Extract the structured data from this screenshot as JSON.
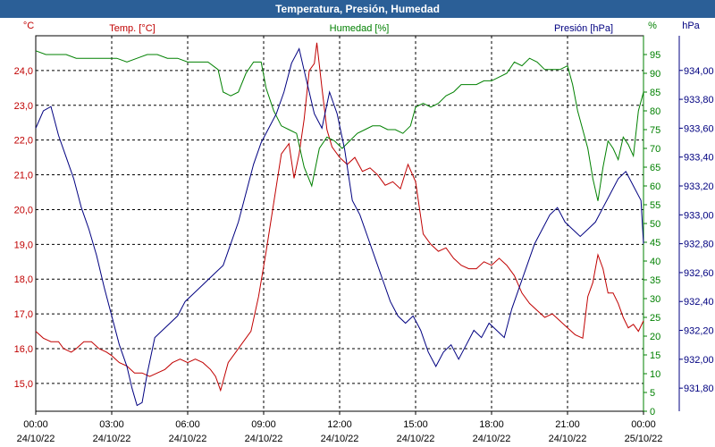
{
  "title": "Temperatura, Presión, Humedad",
  "chart_data": {
    "type": "line",
    "title": "Temperatura, Presión, Humedad",
    "grid": true,
    "x_ticks": [
      {
        "time": "00:00",
        "date": "24/10/22"
      },
      {
        "time": "03:00",
        "date": "24/10/22"
      },
      {
        "time": "06:00",
        "date": "24/10/22"
      },
      {
        "time": "09:00",
        "date": "24/10/22"
      },
      {
        "time": "12:00",
        "date": "24/10/22"
      },
      {
        "time": "15:00",
        "date": "24/10/22"
      },
      {
        "time": "18:00",
        "date": "24/10/22"
      },
      {
        "time": "21:00",
        "date": "24/10/22"
      },
      {
        "time": "00:00",
        "date": "25/10/22"
      }
    ],
    "xlim_hours": [
      0,
      24
    ],
    "axes": {
      "temp": {
        "unit": "°C",
        "color": "#c00000",
        "ylim": [
          14.2,
          25.0
        ],
        "ticks": [
          "15,0",
          "16,0",
          "17,0",
          "18,0",
          "19,0",
          "20,0",
          "21,0",
          "22,0",
          "23,0",
          "24,0"
        ]
      },
      "hum": {
        "unit": "%",
        "color": "#008000",
        "ylim": [
          0,
          100
        ],
        "ticks": [
          "0",
          "5",
          "10",
          "15",
          "20",
          "25",
          "30",
          "35",
          "40",
          "45",
          "50",
          "55",
          "60",
          "65",
          "70",
          "75",
          "80",
          "85",
          "90",
          "95"
        ]
      },
      "pres": {
        "unit": "hPa",
        "color": "#000080",
        "ylim": [
          931.64,
          934.24
        ],
        "ticks": [
          "931,80",
          "932,00",
          "932,20",
          "932,40",
          "932,60",
          "932,80",
          "933,00",
          "933,20",
          "933,40",
          "933,60",
          "933,80",
          "934,00"
        ]
      }
    },
    "series": [
      {
        "name": "Temp. [°C]",
        "axis": "temp",
        "color": "#c00000",
        "points": [
          [
            0,
            16.5
          ],
          [
            0.3,
            16.3
          ],
          [
            0.6,
            16.2
          ],
          [
            0.9,
            16.2
          ],
          [
            1.1,
            16.0
          ],
          [
            1.4,
            15.9
          ],
          [
            1.6,
            16.0
          ],
          [
            1.9,
            16.2
          ],
          [
            2.2,
            16.2
          ],
          [
            2.5,
            16.0
          ],
          [
            2.8,
            15.9
          ],
          [
            3.0,
            15.8
          ],
          [
            3.3,
            15.6
          ],
          [
            3.6,
            15.5
          ],
          [
            3.9,
            15.3
          ],
          [
            4.2,
            15.3
          ],
          [
            4.5,
            15.2
          ],
          [
            4.8,
            15.3
          ],
          [
            5.1,
            15.4
          ],
          [
            5.4,
            15.6
          ],
          [
            5.7,
            15.7
          ],
          [
            6.0,
            15.6
          ],
          [
            6.3,
            15.7
          ],
          [
            6.6,
            15.6
          ],
          [
            6.9,
            15.4
          ],
          [
            7.1,
            15.2
          ],
          [
            7.3,
            14.8
          ],
          [
            7.6,
            15.6
          ],
          [
            7.9,
            15.9
          ],
          [
            8.2,
            16.2
          ],
          [
            8.5,
            16.5
          ],
          [
            8.8,
            17.5
          ],
          [
            9.1,
            18.8
          ],
          [
            9.4,
            20.2
          ],
          [
            9.7,
            21.6
          ],
          [
            10.0,
            21.9
          ],
          [
            10.2,
            20.9
          ],
          [
            10.4,
            21.6
          ],
          [
            10.6,
            22.6
          ],
          [
            10.8,
            24.0
          ],
          [
            11.0,
            24.2
          ],
          [
            11.1,
            24.8
          ],
          [
            11.3,
            23.5
          ],
          [
            11.5,
            22.3
          ],
          [
            11.7,
            21.8
          ],
          [
            12.0,
            21.5
          ],
          [
            12.3,
            21.3
          ],
          [
            12.6,
            21.5
          ],
          [
            12.9,
            21.1
          ],
          [
            13.2,
            21.2
          ],
          [
            13.5,
            21.0
          ],
          [
            13.8,
            20.7
          ],
          [
            14.1,
            20.8
          ],
          [
            14.4,
            20.6
          ],
          [
            14.7,
            21.3
          ],
          [
            15.0,
            20.8
          ],
          [
            15.3,
            19.3
          ],
          [
            15.6,
            19.0
          ],
          [
            15.9,
            18.8
          ],
          [
            16.2,
            18.9
          ],
          [
            16.5,
            18.6
          ],
          [
            16.8,
            18.4
          ],
          [
            17.1,
            18.3
          ],
          [
            17.4,
            18.3
          ],
          [
            17.7,
            18.5
          ],
          [
            18.0,
            18.4
          ],
          [
            18.3,
            18.6
          ],
          [
            18.6,
            18.4
          ],
          [
            18.9,
            18.1
          ],
          [
            19.2,
            17.6
          ],
          [
            19.5,
            17.3
          ],
          [
            19.8,
            17.1
          ],
          [
            20.1,
            16.9
          ],
          [
            20.4,
            17.0
          ],
          [
            20.7,
            16.8
          ],
          [
            21.0,
            16.6
          ],
          [
            21.3,
            16.4
          ],
          [
            21.6,
            16.3
          ],
          [
            21.8,
            17.5
          ],
          [
            22.0,
            17.9
          ],
          [
            22.2,
            18.7
          ],
          [
            22.4,
            18.3
          ],
          [
            22.6,
            17.6
          ],
          [
            22.8,
            17.6
          ],
          [
            23.0,
            17.3
          ],
          [
            23.2,
            16.9
          ],
          [
            23.4,
            16.6
          ],
          [
            23.6,
            16.7
          ],
          [
            23.8,
            16.5
          ],
          [
            24.0,
            16.8
          ]
        ]
      },
      {
        "name": "Humedad [%]",
        "axis": "hum",
        "color": "#008000",
        "points": [
          [
            0,
            96
          ],
          [
            0.4,
            95
          ],
          [
            0.8,
            95
          ],
          [
            1.2,
            95
          ],
          [
            1.6,
            94
          ],
          [
            2.0,
            94
          ],
          [
            2.4,
            94
          ],
          [
            2.8,
            94
          ],
          [
            3.2,
            94
          ],
          [
            3.6,
            93
          ],
          [
            4.0,
            94
          ],
          [
            4.4,
            95
          ],
          [
            4.8,
            95
          ],
          [
            5.2,
            94
          ],
          [
            5.6,
            94
          ],
          [
            6.0,
            93
          ],
          [
            6.4,
            93
          ],
          [
            6.8,
            93
          ],
          [
            7.2,
            91
          ],
          [
            7.4,
            85
          ],
          [
            7.7,
            84
          ],
          [
            8.0,
            85
          ],
          [
            8.3,
            90
          ],
          [
            8.6,
            93
          ],
          [
            8.9,
            93
          ],
          [
            9.1,
            86
          ],
          [
            9.4,
            80
          ],
          [
            9.7,
            76
          ],
          [
            10.0,
            75
          ],
          [
            10.3,
            74
          ],
          [
            10.6,
            65
          ],
          [
            10.9,
            60
          ],
          [
            11.2,
            70
          ],
          [
            11.5,
            73
          ],
          [
            11.8,
            72
          ],
          [
            12.1,
            70
          ],
          [
            12.4,
            72
          ],
          [
            12.7,
            74
          ],
          [
            13.0,
            75
          ],
          [
            13.3,
            76
          ],
          [
            13.6,
            76
          ],
          [
            13.9,
            75
          ],
          [
            14.2,
            75
          ],
          [
            14.5,
            74
          ],
          [
            14.8,
            76
          ],
          [
            15.0,
            81
          ],
          [
            15.3,
            82
          ],
          [
            15.6,
            81
          ],
          [
            15.9,
            82
          ],
          [
            16.2,
            84
          ],
          [
            16.5,
            85
          ],
          [
            16.8,
            87
          ],
          [
            17.1,
            87
          ],
          [
            17.4,
            87
          ],
          [
            17.7,
            88
          ],
          [
            18.0,
            88
          ],
          [
            18.3,
            89
          ],
          [
            18.6,
            90
          ],
          [
            18.9,
            93
          ],
          [
            19.2,
            92
          ],
          [
            19.5,
            94
          ],
          [
            19.8,
            93
          ],
          [
            20.1,
            91
          ],
          [
            20.4,
            91
          ],
          [
            20.7,
            91
          ],
          [
            21.0,
            92
          ],
          [
            21.2,
            87
          ],
          [
            21.4,
            80
          ],
          [
            21.6,
            75
          ],
          [
            21.8,
            70
          ],
          [
            22.0,
            62
          ],
          [
            22.2,
            56
          ],
          [
            22.4,
            65
          ],
          [
            22.6,
            72
          ],
          [
            22.8,
            70
          ],
          [
            23.0,
            67
          ],
          [
            23.2,
            73
          ],
          [
            23.4,
            71
          ],
          [
            23.6,
            68
          ],
          [
            23.8,
            80
          ],
          [
            24.0,
            85
          ]
        ]
      },
      {
        "name": "Presión [hPa]",
        "axis": "pres",
        "color": "#000080",
        "points": [
          [
            0,
            933.6
          ],
          [
            0.3,
            933.72
          ],
          [
            0.6,
            933.75
          ],
          [
            0.9,
            933.55
          ],
          [
            1.2,
            933.4
          ],
          [
            1.5,
            933.25
          ],
          [
            1.8,
            933.05
          ],
          [
            2.1,
            932.9
          ],
          [
            2.4,
            932.72
          ],
          [
            2.7,
            932.5
          ],
          [
            3.0,
            932.3
          ],
          [
            3.3,
            932.1
          ],
          [
            3.6,
            931.95
          ],
          [
            3.8,
            931.8
          ],
          [
            4.0,
            931.68
          ],
          [
            4.2,
            931.7
          ],
          [
            4.4,
            931.9
          ],
          [
            4.7,
            932.15
          ],
          [
            5.0,
            932.2
          ],
          [
            5.3,
            932.25
          ],
          [
            5.6,
            932.3
          ],
          [
            5.9,
            932.4
          ],
          [
            6.2,
            932.45
          ],
          [
            6.5,
            932.5
          ],
          [
            6.8,
            932.55
          ],
          [
            7.1,
            932.6
          ],
          [
            7.4,
            932.65
          ],
          [
            7.7,
            932.8
          ],
          [
            8.0,
            932.95
          ],
          [
            8.3,
            933.15
          ],
          [
            8.6,
            933.35
          ],
          [
            8.9,
            933.5
          ],
          [
            9.2,
            933.6
          ],
          [
            9.5,
            933.7
          ],
          [
            9.8,
            933.85
          ],
          [
            10.1,
            934.05
          ],
          [
            10.4,
            934.15
          ],
          [
            10.6,
            934.0
          ],
          [
            10.8,
            933.85
          ],
          [
            11.0,
            933.7
          ],
          [
            11.3,
            933.6
          ],
          [
            11.6,
            933.85
          ],
          [
            11.9,
            933.7
          ],
          [
            12.2,
            933.45
          ],
          [
            12.5,
            933.1
          ],
          [
            12.8,
            933.0
          ],
          [
            13.1,
            932.85
          ],
          [
            13.4,
            932.7
          ],
          [
            13.7,
            932.55
          ],
          [
            14.0,
            932.4
          ],
          [
            14.3,
            932.3
          ],
          [
            14.6,
            932.25
          ],
          [
            14.9,
            932.3
          ],
          [
            15.2,
            932.2
          ],
          [
            15.5,
            932.05
          ],
          [
            15.8,
            931.95
          ],
          [
            16.1,
            932.05
          ],
          [
            16.4,
            932.1
          ],
          [
            16.7,
            932.0
          ],
          [
            17.0,
            932.1
          ],
          [
            17.3,
            932.2
          ],
          [
            17.6,
            932.15
          ],
          [
            17.9,
            932.25
          ],
          [
            18.2,
            932.2
          ],
          [
            18.5,
            932.15
          ],
          [
            18.8,
            932.35
          ],
          [
            19.1,
            932.5
          ],
          [
            19.4,
            932.65
          ],
          [
            19.7,
            932.8
          ],
          [
            20.0,
            932.9
          ],
          [
            20.3,
            933.0
          ],
          [
            20.6,
            933.05
          ],
          [
            20.9,
            932.95
          ],
          [
            21.2,
            932.9
          ],
          [
            21.5,
            932.85
          ],
          [
            21.8,
            932.9
          ],
          [
            22.1,
            932.95
          ],
          [
            22.4,
            933.05
          ],
          [
            22.7,
            933.15
          ],
          [
            23.0,
            933.25
          ],
          [
            23.3,
            933.3
          ],
          [
            23.6,
            933.2
          ],
          [
            23.9,
            933.1
          ],
          [
            24.0,
            932.8
          ]
        ]
      }
    ]
  }
}
